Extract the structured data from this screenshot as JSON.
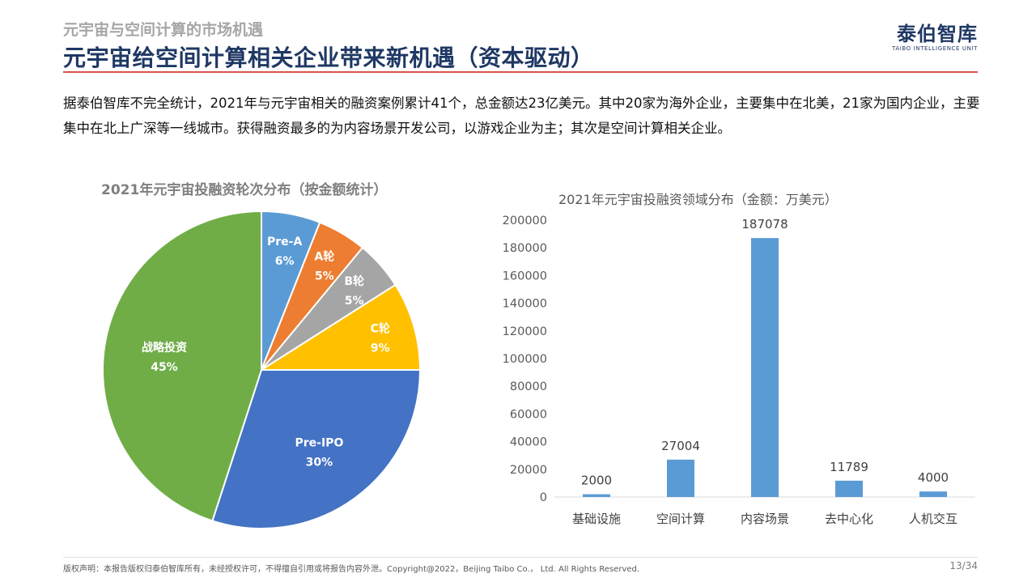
{
  "header": {
    "subtitle": "元宇宙与空间计算的市场机遇",
    "title": "元宇宙给空间计算相关企业带来新机遇（资本驱动）",
    "logo_name": "泰伯智库",
    "logo_sub": "TAIBO INTELLIGENCE UNIT"
  },
  "intro": "据泰伯智库不完全统计，2021年与元宇宙相关的融资案例累计41个，总金额达23亿美元。其中20家为海外企业，主要集中在北美，21家为国内企业，主要集中在北上广深等一线城市。获得融资最多的为内容场景开发公司，以游戏企业为主；其次是空间计算相关企业。",
  "footer": {
    "copyright": "版权声明：本报告版权归泰伯智库所有，未经授权许可，不得擅自引用或将报告内容外泄。Copyright@2022，Beijing Taibo Co.， Ltd. All Rights Reserved.",
    "page": "13/34"
  },
  "chart_data": [
    {
      "type": "pie",
      "title": "2021年元宇宙投融资轮次分布（按金额统计）",
      "slices": [
        {
          "label": "Pre-A",
          "value": 6,
          "display": "6%",
          "color": "#5b9bd5"
        },
        {
          "label": "A轮",
          "value": 5,
          "display": "5%",
          "color": "#ed7d31"
        },
        {
          "label": "B轮",
          "value": 5,
          "display": "5%",
          "color": "#a5a5a5"
        },
        {
          "label": "C轮",
          "value": 9,
          "display": "9%",
          "color": "#ffc000"
        },
        {
          "label": "Pre-IPO",
          "value": 30,
          "display": "30%",
          "color": "#4472c4"
        },
        {
          "label": "战略投资",
          "value": 45,
          "display": "45%",
          "color": "#70ad47"
        }
      ]
    },
    {
      "type": "bar",
      "title": "2021年元宇宙投融资领域分布（金额：万美元）",
      "categories": [
        "基础设施",
        "空间计算",
        "内容场景",
        "去中心化",
        "人机交互"
      ],
      "values": [
        2000,
        27004,
        187078,
        11789,
        4000
      ],
      "ylim": [
        0,
        200000
      ],
      "yticks": [
        0,
        20000,
        40000,
        60000,
        80000,
        100000,
        120000,
        140000,
        160000,
        180000,
        200000
      ],
      "bar_color": "#5b9bd5",
      "grid": false
    }
  ]
}
